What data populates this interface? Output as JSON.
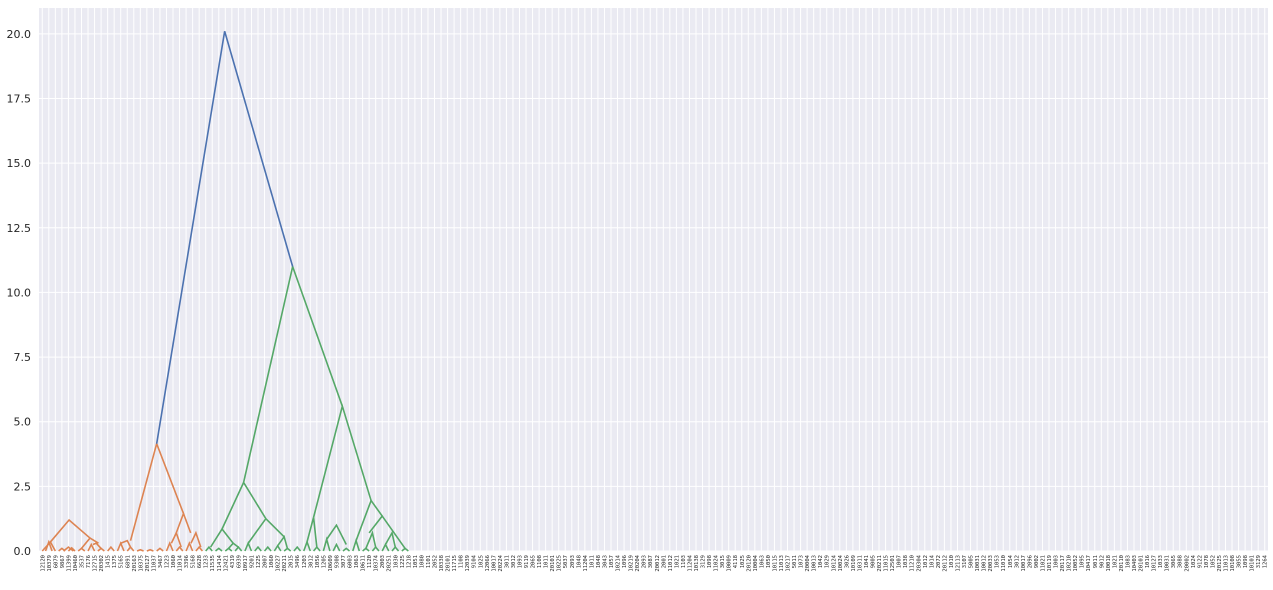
{
  "chart_data": {
    "type": "dendrogram",
    "title": "",
    "xlabel": "",
    "ylabel": "",
    "ylim": [
      0,
      21
    ],
    "yticks": [
      "0.0",
      "2.5",
      "5.0",
      "7.5",
      "10.0",
      "12.5",
      "15.0",
      "17.5",
      "20.0"
    ],
    "grid": true,
    "background": "#eaeaf2",
    "colors": {
      "cluster_1": "#dd8452",
      "cluster_2": "#55a868",
      "above_threshold": "#4c72b0"
    },
    "leaf_count": 188,
    "links": [
      {
        "x": [
          10,
          15,
          15,
          20
        ],
        "y": [
          0,
          0.35,
          0.35,
          0
        ],
        "color": "#dd8452"
      },
      {
        "x": [
          5,
          17.5,
          17.5,
          25
        ],
        "y": [
          0,
          0.35,
          0.35,
          0
        ],
        "color": "#dd8452"
      },
      {
        "x": [
          30,
          35,
          35,
          40
        ],
        "y": [
          0,
          0.1,
          0.1,
          0
        ],
        "color": "#dd8452"
      },
      {
        "x": [
          45,
          50,
          50,
          55
        ],
        "y": [
          0,
          0.12,
          0.12,
          0
        ],
        "color": "#dd8452"
      },
      {
        "x": [
          37.5,
          45,
          45,
          52.5
        ],
        "y": [
          0,
          0.15,
          0.15,
          0
        ],
        "color": "#dd8452"
      },
      {
        "x": [
          60,
          65,
          65,
          70
        ],
        "y": [
          0,
          0.1,
          0.1,
          0
        ],
        "color": "#dd8452"
      },
      {
        "x": [
          75,
          80,
          80,
          85
        ],
        "y": [
          0,
          0.25,
          0.25,
          0
        ],
        "color": "#dd8452"
      },
      {
        "x": [
          90,
          95,
          95,
          100
        ],
        "y": [
          0,
          0.1,
          0.1,
          0
        ],
        "color": "#dd8452"
      },
      {
        "x": [
          82.5,
          87.5,
          87.5,
          95
        ],
        "y": [
          0.25,
          0.3,
          0.3,
          0.1
        ],
        "color": "#dd8452"
      },
      {
        "x": [
          65,
          78,
          78,
          91
        ],
        "y": [
          0.1,
          0.5,
          0.5,
          0.3
        ],
        "color": "#dd8452"
      },
      {
        "x": [
          17.5,
          46,
          46,
          78
        ],
        "y": [
          0.35,
          1.2,
          1.2,
          0.5
        ],
        "color": "#dd8452"
      },
      {
        "x": [
          105,
          110,
          110,
          115
        ],
        "y": [
          0,
          0.15,
          0.15,
          0
        ],
        "color": "#dd8452"
      },
      {
        "x": [
          120,
          125,
          125,
          130
        ],
        "y": [
          0,
          0.3,
          0.3,
          0
        ],
        "color": "#dd8452"
      },
      {
        "x": [
          135,
          140,
          140,
          145
        ],
        "y": [
          0,
          0.15,
          0.15,
          0
        ],
        "color": "#dd8452"
      },
      {
        "x": [
          125,
          135,
          135,
          140
        ],
        "y": [
          0.3,
          0.4,
          0.4,
          0.15
        ],
        "color": "#dd8452"
      },
      {
        "x": [
          150,
          155,
          155,
          160
        ],
        "y": [
          0,
          0.05,
          0.05,
          0
        ],
        "color": "#dd8452"
      },
      {
        "x": [
          165,
          170,
          170,
          175
        ],
        "y": [
          0,
          0.05,
          0.05,
          0
        ],
        "color": "#dd8452"
      },
      {
        "x": [
          180,
          185,
          185,
          190
        ],
        "y": [
          0,
          0.1,
          0.1,
          0
        ],
        "color": "#dd8452"
      },
      {
        "x": [
          195,
          200,
          200,
          205
        ],
        "y": [
          0,
          0.3,
          0.3,
          0
        ],
        "color": "#dd8452"
      },
      {
        "x": [
          210,
          215,
          215,
          220
        ],
        "y": [
          0,
          0.15,
          0.15,
          0
        ],
        "color": "#dd8452"
      },
      {
        "x": [
          202.5,
          210,
          210,
          217.5
        ],
        "y": [
          0.3,
          0.7,
          0.7,
          0.15
        ],
        "color": "#dd8452"
      },
      {
        "x": [
          225,
          230,
          230,
          235
        ],
        "y": [
          0,
          0.3,
          0.3,
          0
        ],
        "color": "#dd8452"
      },
      {
        "x": [
          240,
          245,
          245,
          250
        ],
        "y": [
          0,
          0.15,
          0.15,
          0
        ],
        "color": "#dd8452"
      },
      {
        "x": [
          232.5,
          240,
          240,
          247.5
        ],
        "y": [
          0.3,
          0.7,
          0.7,
          0.15
        ],
        "color": "#dd8452"
      },
      {
        "x": [
          210,
          221,
          221,
          232
        ],
        "y": [
          0.7,
          1.45,
          1.45,
          0.7
        ],
        "color": "#dd8452"
      },
      {
        "x": [
          140,
          180,
          180,
          221
        ],
        "y": [
          0.4,
          4.15,
          4.15,
          1.45
        ],
        "color": "#dd8452"
      },
      {
        "x": [
          255,
          260,
          260,
          265
        ],
        "y": [
          0,
          0.15,
          0.15,
          0
        ],
        "color": "#55a868"
      },
      {
        "x": [
          270,
          275,
          275,
          280
        ],
        "y": [
          0,
          0.1,
          0.1,
          0
        ],
        "color": "#55a868"
      },
      {
        "x": [
          285,
          290,
          290,
          295
        ],
        "y": [
          0,
          0.1,
          0.1,
          0
        ],
        "color": "#55a868"
      },
      {
        "x": [
          300,
          305,
          305,
          310
        ],
        "y": [
          0,
          0.15,
          0.15,
          0
        ],
        "color": "#55a868"
      },
      {
        "x": [
          290,
          297,
          297,
          305
        ],
        "y": [
          0.1,
          0.3,
          0.3,
          0.15
        ],
        "color": "#55a868"
      },
      {
        "x": [
          262.5,
          280,
          280,
          297
        ],
        "y": [
          0.15,
          0.85,
          0.85,
          0.3
        ],
        "color": "#55a868"
      },
      {
        "x": [
          315,
          320,
          320,
          325
        ],
        "y": [
          0,
          0.3,
          0.3,
          0
        ],
        "color": "#55a868"
      },
      {
        "x": [
          330,
          335,
          335,
          340
        ],
        "y": [
          0,
          0.15,
          0.15,
          0
        ],
        "color": "#55a868"
      },
      {
        "x": [
          345,
          350,
          350,
          355
        ],
        "y": [
          0,
          0.15,
          0.15,
          0
        ],
        "color": "#55a868"
      },
      {
        "x": [
          360,
          365,
          365,
          370
        ],
        "y": [
          0,
          0.2,
          0.2,
          0
        ],
        "color": "#55a868"
      },
      {
        "x": [
          375,
          380,
          380,
          385
        ],
        "y": [
          0,
          0.1,
          0.1,
          0
        ],
        "color": "#55a868"
      },
      {
        "x": [
          365,
          375,
          375,
          380
        ],
        "y": [
          0.2,
          0.55,
          0.55,
          0.1
        ],
        "color": "#55a868"
      },
      {
        "x": [
          320,
          347,
          347,
          375
        ],
        "y": [
          0.3,
          1.25,
          1.25,
          0.55
        ],
        "color": "#55a868"
      },
      {
        "x": [
          280,
          313,
          313,
          347
        ],
        "y": [
          0.85,
          2.65,
          2.65,
          1.25
        ],
        "color": "#55a868"
      },
      {
        "x": [
          390,
          395,
          395,
          400
        ],
        "y": [
          0,
          0.15,
          0.15,
          0
        ],
        "color": "#55a868"
      },
      {
        "x": [
          405,
          410,
          410,
          415
        ],
        "y": [
          0,
          0.35,
          0.35,
          0
        ],
        "color": "#55a868"
      },
      {
        "x": [
          420,
          425,
          425,
          430
        ],
        "y": [
          0,
          0.15,
          0.15,
          0
        ],
        "color": "#55a868"
      },
      {
        "x": [
          410,
          420,
          420,
          425
        ],
        "y": [
          0.35,
          1.3,
          1.3,
          0.15
        ],
        "color": "#55a868"
      },
      {
        "x": [
          435,
          440,
          440,
          445
        ],
        "y": [
          0,
          0.45,
          0.45,
          0
        ],
        "color": "#55a868"
      },
      {
        "x": [
          450,
          455,
          455,
          460
        ],
        "y": [
          0,
          0.25,
          0.25,
          0
        ],
        "color": "#55a868"
      },
      {
        "x": [
          465,
          470,
          470,
          475
        ],
        "y": [
          0,
          0.1,
          0.1,
          0
        ],
        "color": "#55a868"
      },
      {
        "x": [
          440,
          455,
          455,
          470
        ],
        "y": [
          0.45,
          1.0,
          1.0,
          0.25
        ],
        "color": "#55a868"
      },
      {
        "x": [
          480,
          485,
          485,
          490
        ],
        "y": [
          0,
          0.4,
          0.4,
          0
        ],
        "color": "#55a868"
      },
      {
        "x": [
          495,
          500,
          500,
          505
        ],
        "y": [
          0,
          0.1,
          0.1,
          0
        ],
        "color": "#55a868"
      },
      {
        "x": [
          510,
          515,
          515,
          520
        ],
        "y": [
          0,
          0.15,
          0.15,
          0
        ],
        "color": "#55a868"
      },
      {
        "x": [
          500,
          510,
          510,
          515
        ],
        "y": [
          0.1,
          0.7,
          0.7,
          0.15
        ],
        "color": "#55a868"
      },
      {
        "x": [
          525,
          530,
          530,
          535
        ],
        "y": [
          0,
          0.25,
          0.25,
          0
        ],
        "color": "#55a868"
      },
      {
        "x": [
          540,
          545,
          545,
          550
        ],
        "y": [
          0,
          0.15,
          0.15,
          0
        ],
        "color": "#55a868"
      },
      {
        "x": [
          530,
          540,
          540,
          545
        ],
        "y": [
          0.25,
          0.7,
          0.7,
          0.15
        ],
        "color": "#55a868"
      },
      {
        "x": [
          555,
          560,
          560,
          565
        ],
        "y": [
          0,
          0.1,
          0.1,
          0
        ],
        "color": "#55a868"
      },
      {
        "x": [
          505,
          525,
          525,
          560
        ],
        "y": [
          0.7,
          1.35,
          1.35,
          0.1
        ],
        "color": "#55a868"
      },
      {
        "x": [
          485,
          508,
          508,
          525
        ],
        "y": [
          0.4,
          1.95,
          1.95,
          1.35
        ],
        "color": "#55a868"
      },
      {
        "x": [
          420,
          464,
          464,
          508
        ],
        "y": [
          1.3,
          5.6,
          5.6,
          1.95
        ],
        "color": "#55a868"
      },
      {
        "x": [
          313,
          388,
          388,
          464
        ],
        "y": [
          2.65,
          11.0,
          11.0,
          5.6
        ],
        "color": "#55a868"
      },
      {
        "x": [
          180,
          284,
          284,
          388
        ],
        "y": [
          4.15,
          20.1,
          20.1,
          11.0
        ],
        "color": "#4c72b0"
      }
    ],
    "leaf_labels": [
      "12120",
      "10379",
      "6079",
      "9867",
      "11399",
      "10460",
      "3537",
      "7176",
      "12715",
      "20302",
      "1415",
      "1375",
      "5165",
      "6891",
      "20163",
      "10375",
      "20127",
      "11037",
      "3467",
      "1223",
      "1060",
      "11014",
      "3396",
      "5168",
      "6628",
      "1233",
      "11535",
      "11414",
      "12421",
      "4319",
      "6939",
      "10917",
      "9201",
      "1225",
      "2007",
      "1060",
      "10227",
      "20211",
      "2015",
      "3496",
      "1203",
      "3012",
      "1056",
      "1205",
      "10609",
      "9308",
      "3077",
      "6003",
      "1063",
      "10611",
      "1120",
      "10374",
      "2003",
      "20251",
      "1030",
      "1225",
      "1218",
      "1051",
      "1080",
      "1101",
      "2052",
      "10338",
      "20101",
      "11715",
      "1108",
      "12039",
      "9104",
      "1025",
      "12066",
      "10017",
      "20224",
      "3011",
      "3012",
      "1093",
      "9119",
      "2065",
      "1108",
      "1011",
      "20101",
      "10225",
      "5037",
      "2093",
      "1048",
      "11204",
      "1011",
      "1048",
      "3043",
      "1057",
      "10214",
      "1096",
      "10219",
      "20204",
      "2093",
      "3087",
      "20012",
      "2001",
      "11012",
      "1021",
      "1103",
      "11204",
      "10138",
      "3129",
      "1098",
      "11024",
      "3015",
      "10009",
      "4118",
      "1025",
      "20120",
      "10004",
      "1063",
      "1050",
      "10115",
      "11013",
      "10217",
      "5011",
      "1073",
      "20004",
      "10013",
      "1042",
      "1029",
      "10124",
      "10024",
      "3026",
      "10109",
      "10311",
      "1041",
      "9005",
      "20211",
      "11015",
      "12501",
      "1007",
      "1038",
      "11210",
      "20304",
      "1012",
      "1014",
      "2072",
      "20112",
      "1010",
      "12113",
      "3107",
      "5005",
      "10031",
      "10012",
      "20033",
      "1053",
      "11010",
      "1054",
      "3012",
      "10017",
      "2096",
      "9002",
      "11021",
      "10119",
      "1003",
      "20117",
      "10210",
      "10052",
      "1095",
      "10417",
      "9011",
      "9012",
      "10018",
      "1021",
      "20110",
      "1083",
      "10403",
      "20101",
      "1016",
      "10127",
      "1033",
      "10031",
      "3065",
      "3088",
      "20002",
      "1024",
      "9122",
      "1078",
      "1052",
      "20125",
      "11013",
      "10108",
      "3055",
      "1098",
      "10101",
      "3129",
      "1264"
    ]
  }
}
